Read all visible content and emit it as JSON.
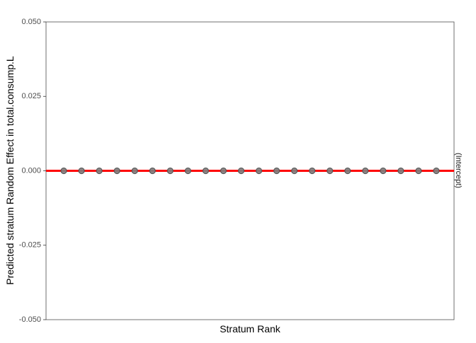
{
  "chart_data": {
    "type": "scatter",
    "xlabel": "Stratum Rank",
    "ylabel": "Predicted stratum Random Effect in total.consump.L",
    "facet_label": "(Intercept)",
    "ylim": [
      -0.05,
      0.05
    ],
    "y_ticks": [
      -0.05,
      -0.025,
      0,
      0.025,
      0.05
    ],
    "y_tick_labels": [
      "-0.050",
      "-0.025",
      "0.000",
      "0.025",
      "0.050"
    ],
    "x_ticks_shown": false,
    "grid": false,
    "reference_line": {
      "y": 0,
      "color": "#ff0000"
    },
    "point_color": "#808080",
    "x": [
      1,
      2,
      3,
      4,
      5,
      6,
      7,
      8,
      9,
      10,
      11,
      12,
      13,
      14,
      15,
      16,
      17,
      18,
      19,
      20,
      21,
      22
    ],
    "y": [
      0,
      0,
      0,
      0,
      0,
      0,
      0,
      0,
      0,
      0,
      0,
      0,
      0,
      0,
      0,
      0,
      0,
      0,
      0,
      0,
      0,
      0
    ]
  }
}
